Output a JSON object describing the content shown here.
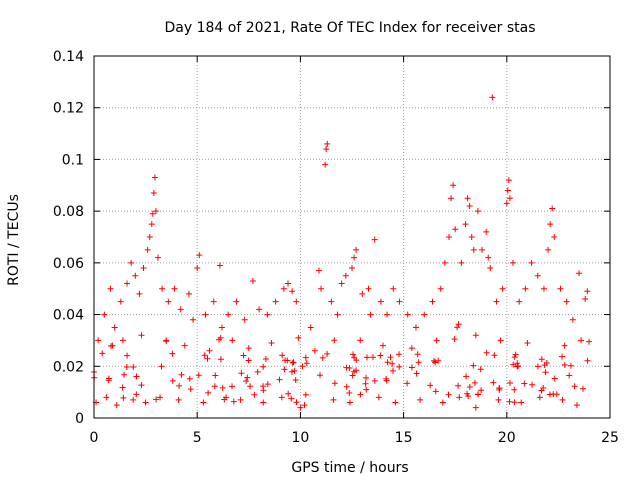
{
  "chart_data": {
    "type": "scatter",
    "title": "Day 184 of 2021, Rate Of TEC Index for receiver stas",
    "xlabel": "GPS time / hours",
    "ylabel": "ROTI / TECUs",
    "xlim": [
      0,
      25
    ],
    "ylim": [
      0,
      0.14
    ],
    "grid": true,
    "marker": "+",
    "color": "#ff0000",
    "x_ticks": [
      0,
      5,
      10,
      15,
      20,
      25
    ],
    "x_tick_labels": [
      "0",
      "5",
      "10",
      "15",
      "20",
      "25"
    ],
    "y_ticks": [
      0,
      0.02,
      0.04,
      0.06,
      0.08,
      0.1,
      0.12,
      0.14
    ],
    "y_tick_labels": [
      "0",
      "0.02",
      "0.04",
      "0.06",
      "0.08",
      "0.1",
      "0.12",
      "0.14"
    ],
    "series": [
      {
        "name": "ROTI",
        "points": [
          [
            0.2,
            0.03
          ],
          [
            0.5,
            0.04
          ],
          [
            0.8,
            0.05
          ],
          [
            1.0,
            0.035
          ],
          [
            1.3,
            0.045
          ],
          [
            1.6,
            0.052
          ],
          [
            1.8,
            0.06
          ],
          [
            2.0,
            0.055
          ],
          [
            2.2,
            0.048
          ],
          [
            2.4,
            0.058
          ],
          [
            2.6,
            0.065
          ],
          [
            2.7,
            0.07
          ],
          [
            2.8,
            0.075
          ],
          [
            2.85,
            0.079
          ],
          [
            2.9,
            0.087
          ],
          [
            2.95,
            0.093
          ],
          [
            3.0,
            0.08
          ],
          [
            3.1,
            0.062
          ],
          [
            3.3,
            0.05
          ],
          [
            3.6,
            0.045
          ],
          [
            3.9,
            0.05
          ],
          [
            4.2,
            0.042
          ],
          [
            4.6,
            0.048
          ],
          [
            5.0,
            0.058
          ],
          [
            5.1,
            0.063
          ],
          [
            5.4,
            0.04
          ],
          [
            5.8,
            0.045
          ],
          [
            6.1,
            0.059
          ],
          [
            6.5,
            0.04
          ],
          [
            6.9,
            0.045
          ],
          [
            7.3,
            0.038
          ],
          [
            7.7,
            0.053
          ],
          [
            8.0,
            0.042
          ],
          [
            8.4,
            0.04
          ],
          [
            8.8,
            0.045
          ],
          [
            9.2,
            0.05
          ],
          [
            9.4,
            0.052
          ],
          [
            9.6,
            0.049
          ],
          [
            9.8,
            0.045
          ],
          [
            10.1,
            0.02
          ],
          [
            10.5,
            0.035
          ],
          [
            10.9,
            0.057
          ],
          [
            11.0,
            0.05
          ],
          [
            11.2,
            0.098
          ],
          [
            11.25,
            0.104
          ],
          [
            11.3,
            0.106
          ],
          [
            11.5,
            0.045
          ],
          [
            11.8,
            0.04
          ],
          [
            12.0,
            0.052
          ],
          [
            12.2,
            0.055
          ],
          [
            12.5,
            0.058
          ],
          [
            12.6,
            0.062
          ],
          [
            12.7,
            0.065
          ],
          [
            13.0,
            0.048
          ],
          [
            13.3,
            0.05
          ],
          [
            13.6,
            0.069
          ],
          [
            13.9,
            0.045
          ],
          [
            14.2,
            0.04
          ],
          [
            14.5,
            0.05
          ],
          [
            14.8,
            0.045
          ],
          [
            15.2,
            0.04
          ],
          [
            15.6,
            0.035
          ],
          [
            16.0,
            0.04
          ],
          [
            16.4,
            0.045
          ],
          [
            16.8,
            0.05
          ],
          [
            17.0,
            0.06
          ],
          [
            17.2,
            0.07
          ],
          [
            17.3,
            0.085
          ],
          [
            17.4,
            0.09
          ],
          [
            17.5,
            0.073
          ],
          [
            17.8,
            0.06
          ],
          [
            18.0,
            0.075
          ],
          [
            18.1,
            0.085
          ],
          [
            18.2,
            0.082
          ],
          [
            18.3,
            0.07
          ],
          [
            18.4,
            0.065
          ],
          [
            18.6,
            0.08
          ],
          [
            18.8,
            0.065
          ],
          [
            19.0,
            0.072
          ],
          [
            19.1,
            0.062
          ],
          [
            19.2,
            0.058
          ],
          [
            19.3,
            0.124
          ],
          [
            19.5,
            0.045
          ],
          [
            19.8,
            0.05
          ],
          [
            20.0,
            0.083
          ],
          [
            20.05,
            0.088
          ],
          [
            20.1,
            0.092
          ],
          [
            20.15,
            0.085
          ],
          [
            20.3,
            0.06
          ],
          [
            20.6,
            0.045
          ],
          [
            20.9,
            0.05
          ],
          [
            21.2,
            0.06
          ],
          [
            21.5,
            0.055
          ],
          [
            21.8,
            0.05
          ],
          [
            22.0,
            0.065
          ],
          [
            22.1,
            0.075
          ],
          [
            22.2,
            0.081
          ],
          [
            22.3,
            0.07
          ],
          [
            22.6,
            0.05
          ],
          [
            22.9,
            0.045
          ],
          [
            23.2,
            0.038
          ],
          [
            23.5,
            0.056
          ],
          [
            23.8,
            0.046
          ],
          [
            23.9,
            0.049
          ],
          [
            0.4,
            0.025
          ],
          [
            0.9,
            0.028
          ],
          [
            1.4,
            0.03
          ],
          [
            2.3,
            0.032
          ],
          [
            3.5,
            0.03
          ],
          [
            4.4,
            0.028
          ],
          [
            5.6,
            0.026
          ],
          [
            6.7,
            0.03
          ],
          [
            7.5,
            0.027
          ],
          [
            8.6,
            0.029
          ],
          [
            9.9,
            0.031
          ],
          [
            10.7,
            0.026
          ],
          [
            12.9,
            0.03
          ],
          [
            14.0,
            0.028
          ],
          [
            15.4,
            0.027
          ],
          [
            16.6,
            0.03
          ],
          [
            18.5,
            0.032
          ],
          [
            19.7,
            0.03
          ],
          [
            21.0,
            0.029
          ],
          [
            22.8,
            0.028
          ],
          [
            23.6,
            0.03
          ],
          [
            13.4,
            0.04
          ],
          [
            6.2,
            0.035
          ],
          [
            4.8,
            0.038
          ],
          [
            0.1,
            0.006
          ],
          [
            0.6,
            0.008
          ],
          [
            1.1,
            0.005
          ],
          [
            1.9,
            0.007
          ],
          [
            2.5,
            0.006
          ],
          [
            3.2,
            0.008
          ],
          [
            4.1,
            0.007
          ],
          [
            5.3,
            0.006
          ],
          [
            6.4,
            0.008
          ],
          [
            7.1,
            0.007
          ],
          [
            8.2,
            0.006
          ],
          [
            9.1,
            0.008
          ],
          [
            10.2,
            0.005
          ],
          [
            11.6,
            0.007
          ],
          [
            12.4,
            0.006
          ],
          [
            13.8,
            0.008
          ],
          [
            14.6,
            0.006
          ],
          [
            15.8,
            0.007
          ],
          [
            16.9,
            0.006
          ],
          [
            17.7,
            0.008
          ],
          [
            18.5,
            0.004
          ],
          [
            19.6,
            0.007
          ],
          [
            20.7,
            0.006
          ],
          [
            21.6,
            0.008
          ],
          [
            22.7,
            0.007
          ],
          [
            23.4,
            0.005
          ],
          [
            10.0,
            0.004
          ]
        ]
      }
    ]
  }
}
